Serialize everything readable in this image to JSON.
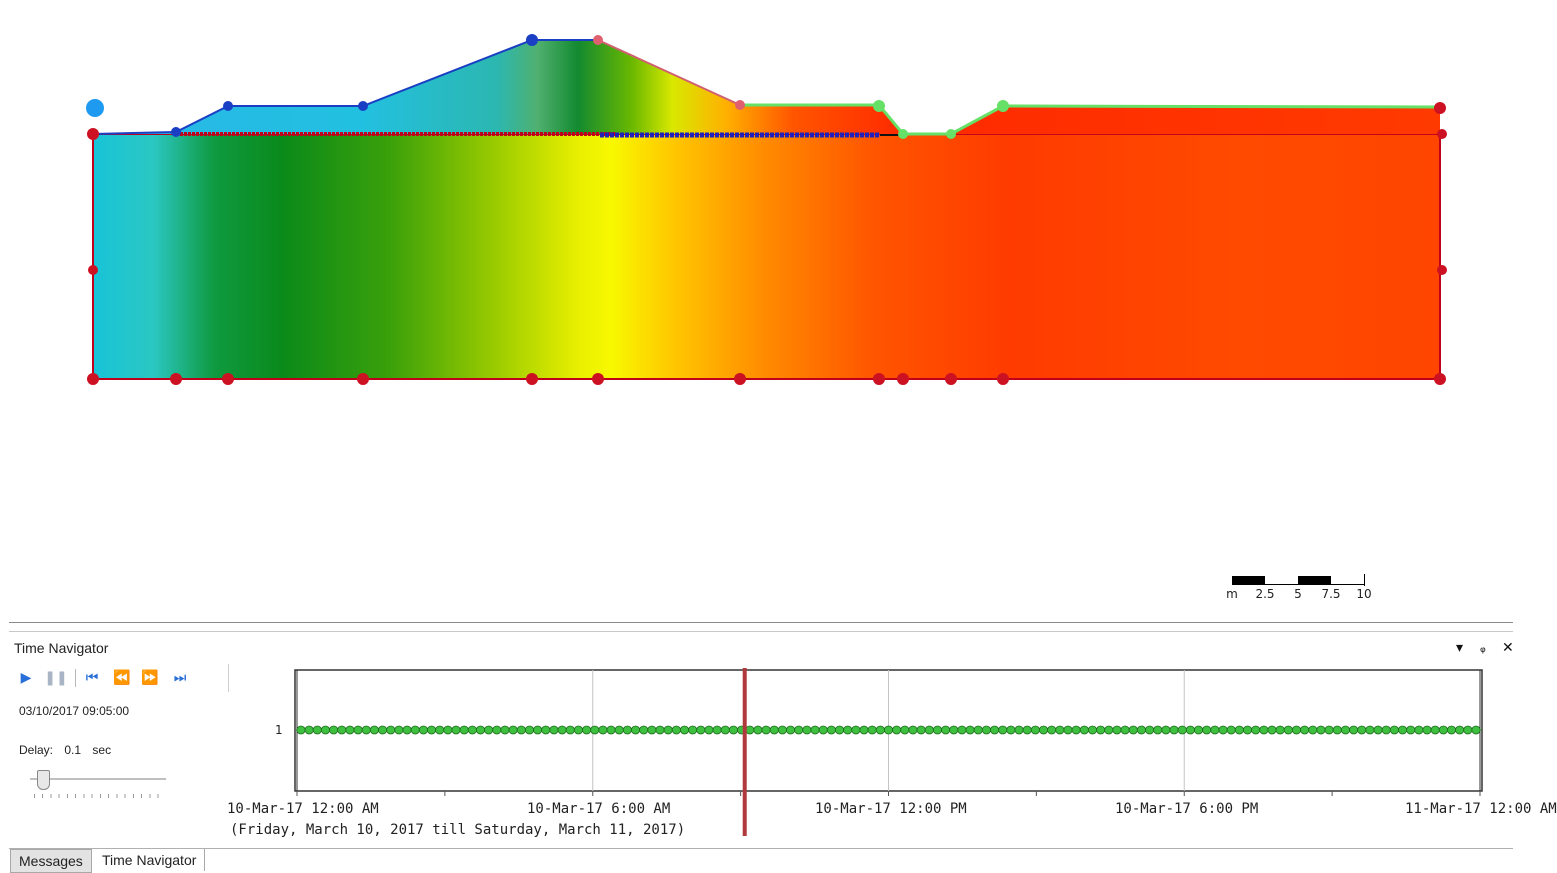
{
  "scale_bar": {
    "labels": [
      "m",
      "2.5",
      "5",
      "7.5",
      "10"
    ]
  },
  "time_navigator": {
    "title": "Time Navigator",
    "controls": [
      "play-icon",
      "pause-icon",
      "first-frame-icon",
      "step-back-icon",
      "step-forward-icon",
      "last-frame-icon"
    ],
    "current_datetime": "03/10/2017 09:05:00",
    "delay_label": "Delay:",
    "delay_value": "0.1",
    "delay_unit": "sec",
    "timeline": {
      "row_label": "1",
      "axis_labels": [
        "10-Mar-17 12:00 AM",
        "10-Mar-17 6:00 AM",
        "10-Mar-17 12:00 PM",
        "10-Mar-17 6:00 PM",
        "11-Mar-17 12:00 AM"
      ],
      "range_text": "(Friday, March 10, 2017 till Saturday, March 11, 2017)",
      "current_hours": 9.083,
      "span_hours": 24,
      "marker_color": "#b0393b",
      "step_marker_color": "#3fbf3f"
    }
  },
  "tabs": {
    "messages": "Messages",
    "time_navigator": "Time Navigator"
  },
  "colors": {
    "boundary": "#c0001a",
    "node": "#cc1122",
    "blue_node": "#1a3fc4",
    "light_node": "#1e9bf0",
    "green_edge": "#66e066"
  }
}
